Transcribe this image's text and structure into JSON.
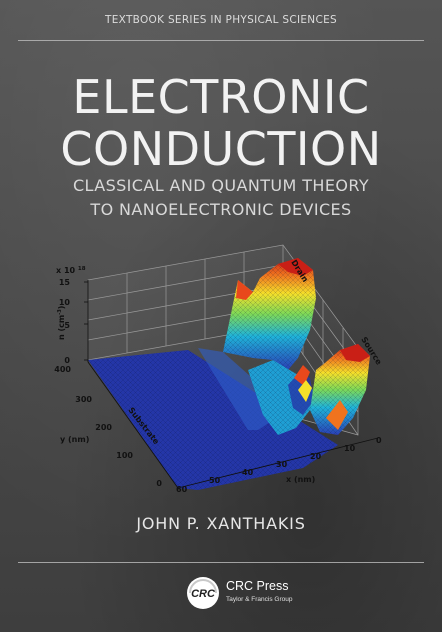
{
  "series_label": "TEXTBOOK SERIES IN PHYSICAL SCIENCES",
  "title_lines": [
    "ELECTRONIC",
    "CONDUCTION"
  ],
  "subtitle_lines": [
    "CLASSICAL AND QUANTUM THEORY",
    "TO NANOELECTRONIC DEVICES"
  ],
  "plot": {
    "scale_label": "x 10",
    "scale_exponent": "18",
    "z_label": "n (cm",
    "z_label_sup": "-3",
    "z_label_close": ")",
    "z_ticks": [
      "15",
      "10",
      "5",
      "0"
    ],
    "y_label": "y (nm)",
    "y_ticks": [
      "400",
      "300",
      "200",
      "100",
      "0"
    ],
    "x_label": "x (nm)",
    "x_ticks": [
      "60",
      "50",
      "40",
      "30",
      "20",
      "10",
      "0"
    ],
    "region_labels": {
      "substrate": "Substrate",
      "drain": "Drain",
      "source": "Source"
    }
  },
  "author": "JOHN P. XANTHAKIS",
  "publisher": {
    "logo_text": "CRC",
    "name": "CRC Press",
    "tagline": "Taylor & Francis Group"
  },
  "colors": {
    "background": "#4a4a4a",
    "title": "#f2f2f2",
    "surface_low": "#2436a8",
    "surface_high": "#d42a1c"
  }
}
